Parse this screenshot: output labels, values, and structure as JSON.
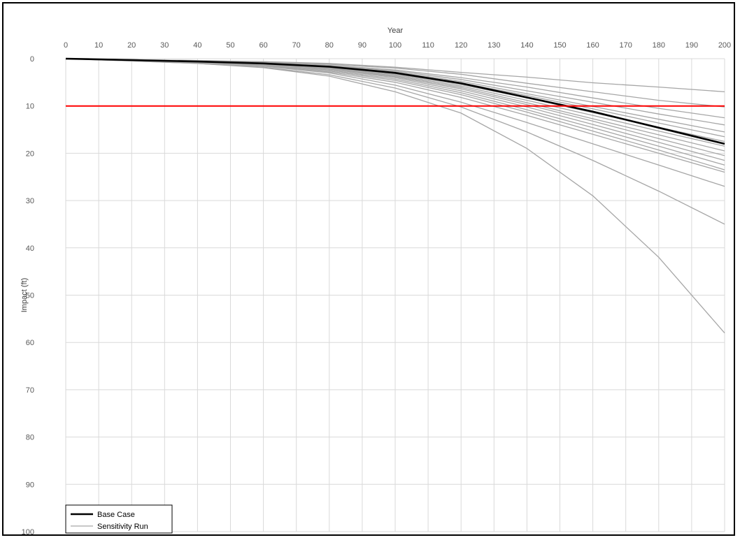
{
  "chart_data": {
    "type": "line",
    "title": "",
    "xlabel": "Year",
    "ylabel": "Impact (ft)",
    "xlim": [
      0,
      200
    ],
    "ylim": [
      0,
      100
    ],
    "y_inverted": true,
    "x_axis_position": "top",
    "grid": true,
    "xticks": [
      0,
      10,
      20,
      30,
      40,
      50,
      60,
      70,
      80,
      90,
      100,
      110,
      120,
      130,
      140,
      150,
      160,
      170,
      180,
      190,
      200
    ],
    "yticks": [
      0,
      10,
      20,
      30,
      40,
      50,
      60,
      70,
      80,
      90,
      100
    ],
    "threshold": {
      "value": 10,
      "color": "#ff0000"
    },
    "legend": {
      "placement": "bottom-left",
      "entries": [
        {
          "label": "Base Case",
          "color": "#000000"
        },
        {
          "label": "Sensitivity Run",
          "color": "#a6a6a6"
        }
      ]
    },
    "base_case": {
      "name": "Base Case",
      "color": "#000000",
      "x": [
        0,
        20,
        40,
        60,
        80,
        100,
        120,
        140,
        160,
        180,
        200
      ],
      "y": [
        0,
        0.3,
        0.6,
        1.0,
        1.7,
        3.0,
        5.2,
        8.2,
        11.2,
        14.6,
        18.0
      ]
    },
    "sensitivity_runs": {
      "name": "Sensitivity Run",
      "color": "#a6a6a6",
      "x": [
        0,
        20,
        40,
        60,
        80,
        100,
        120,
        140,
        160,
        180,
        200
      ],
      "series": [
        [
          0,
          0.2,
          0.4,
          0.6,
          1.0,
          1.8,
          2.9,
          3.9,
          5.1,
          6.0,
          7.0
        ],
        [
          0,
          0.2,
          0.4,
          0.7,
          1.2,
          2.0,
          3.3,
          5.2,
          7.0,
          8.8,
          10.2
        ],
        [
          0,
          0.2,
          0.5,
          0.8,
          1.4,
          2.4,
          4.0,
          6.0,
          8.3,
          10.5,
          12.5
        ],
        [
          0,
          0.3,
          0.5,
          0.8,
          1.5,
          2.6,
          4.4,
          6.8,
          9.2,
          11.7,
          14.0
        ],
        [
          0,
          0.3,
          0.6,
          0.9,
          1.6,
          2.8,
          4.8,
          7.4,
          10.1,
          12.8,
          15.5
        ],
        [
          0,
          0.3,
          0.6,
          1.0,
          1.7,
          3.0,
          5.1,
          7.8,
          10.6,
          13.6,
          16.5
        ],
        [
          0,
          0.3,
          0.6,
          1.0,
          1.8,
          3.2,
          5.5,
          8.3,
          11.4,
          14.5,
          17.5
        ],
        [
          0,
          0.3,
          0.6,
          1.1,
          1.9,
          3.4,
          5.8,
          8.8,
          12.0,
          15.3,
          18.5
        ],
        [
          0,
          0.3,
          0.7,
          1.1,
          2.0,
          3.6,
          6.1,
          9.3,
          12.7,
          16.1,
          19.5
        ],
        [
          0,
          0.3,
          0.7,
          1.2,
          2.1,
          3.8,
          6.4,
          9.7,
          13.2,
          16.9,
          20.5
        ],
        [
          0,
          0.4,
          0.7,
          1.2,
          2.2,
          4.0,
          6.8,
          10.2,
          13.9,
          17.7,
          21.5
        ],
        [
          0,
          0.4,
          0.8,
          1.3,
          2.4,
          4.3,
          7.2,
          10.8,
          14.6,
          18.5,
          22.5
        ],
        [
          0,
          0.4,
          0.8,
          1.4,
          2.6,
          4.6,
          7.6,
          11.3,
          15.3,
          19.3,
          23.5
        ],
        [
          0,
          0.4,
          0.8,
          1.5,
          2.8,
          5.0,
          8.2,
          12.0,
          16.0,
          20.0,
          24.0
        ],
        [
          0,
          0.4,
          0.9,
          1.6,
          3.0,
          5.6,
          9.2,
          13.5,
          18.0,
          22.5,
          27.0
        ],
        [
          0,
          0.5,
          1.0,
          1.8,
          3.4,
          6.2,
          10.2,
          15.5,
          21.5,
          28.0,
          35.0
        ],
        [
          0,
          0.5,
          1.0,
          1.9,
          3.7,
          7.0,
          11.5,
          19.0,
          29.0,
          42.0,
          58.0
        ]
      ]
    }
  }
}
